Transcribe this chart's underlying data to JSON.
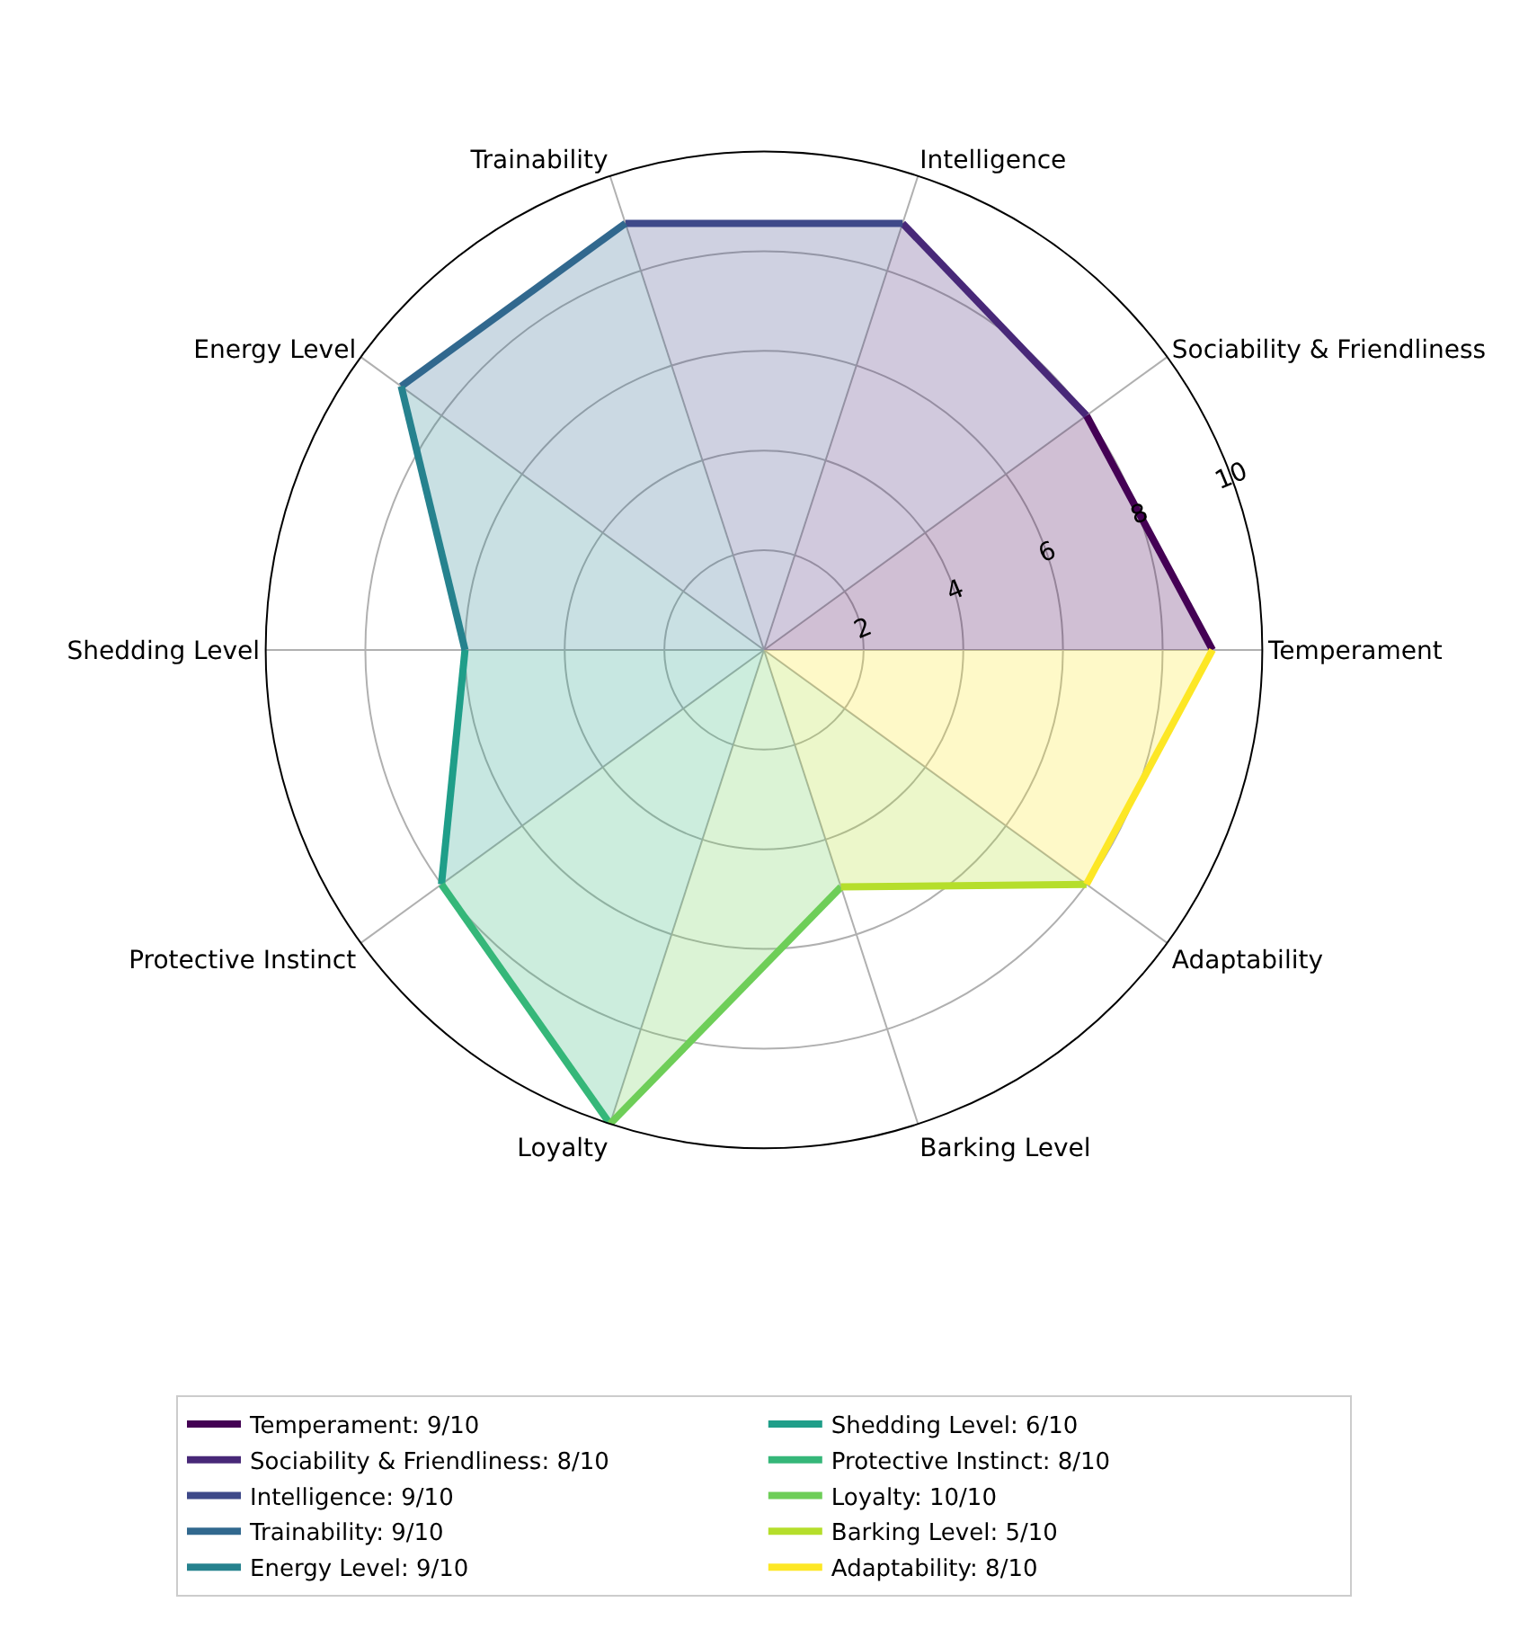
{
  "chart_data": {
    "type": "radar",
    "categories": [
      "Intelligence",
      "Sociability & Friendliness",
      "Temperament",
      "Adaptability",
      "Barking Level",
      "Loyalty",
      "Protective Instinct",
      "Shedding Level",
      "Energy Level",
      "Trainability"
    ],
    "series": [
      {
        "name": "Temperament: 9/10",
        "color": "#440154",
        "values": [
          null,
          8,
          9,
          null,
          null,
          null,
          null,
          null,
          null,
          null
        ]
      },
      {
        "name": "Sociability & Friendliness: 8/10",
        "color": "#482878",
        "values": [
          9,
          8,
          null,
          null,
          null,
          null,
          null,
          null,
          null,
          null
        ]
      },
      {
        "name": "Intelligence: 9/10",
        "color": "#3e4989",
        "values": [
          9,
          null,
          null,
          null,
          null,
          null,
          null,
          null,
          null,
          9
        ]
      },
      {
        "name": "Trainability: 9/10",
        "color": "#31688e",
        "values": [
          null,
          null,
          null,
          null,
          null,
          null,
          null,
          null,
          9,
          9
        ]
      },
      {
        "name": "Energy Level: 9/10",
        "color": "#26828e",
        "values": [
          null,
          null,
          null,
          null,
          null,
          null,
          null,
          6,
          9,
          null
        ]
      },
      {
        "name": "Shedding Level: 6/10",
        "color": "#1f9e89",
        "values": [
          null,
          null,
          null,
          null,
          null,
          null,
          8,
          6,
          null,
          null
        ]
      },
      {
        "name": "Protective Instinct: 8/10",
        "color": "#35b779",
        "values": [
          null,
          null,
          null,
          null,
          null,
          10,
          8,
          null,
          null,
          null
        ]
      },
      {
        "name": "Loyalty: 10/10",
        "color": "#6ece58",
        "values": [
          null,
          null,
          null,
          null,
          5,
          10,
          null,
          null,
          null,
          null
        ]
      },
      {
        "name": "Barking Level: 5/10",
        "color": "#b5de2b",
        "values": [
          null,
          null,
          null,
          8,
          5,
          null,
          null,
          null,
          null,
          null
        ]
      },
      {
        "name": "Adaptability: 8/10",
        "color": "#fde725",
        "values": [
          null,
          null,
          9,
          8,
          null,
          null,
          null,
          null,
          null,
          null
        ]
      }
    ],
    "ylim": [
      0,
      10
    ],
    "yticks": [
      2,
      4,
      6,
      8,
      10
    ],
    "grid": true,
    "legend": "bottom"
  }
}
